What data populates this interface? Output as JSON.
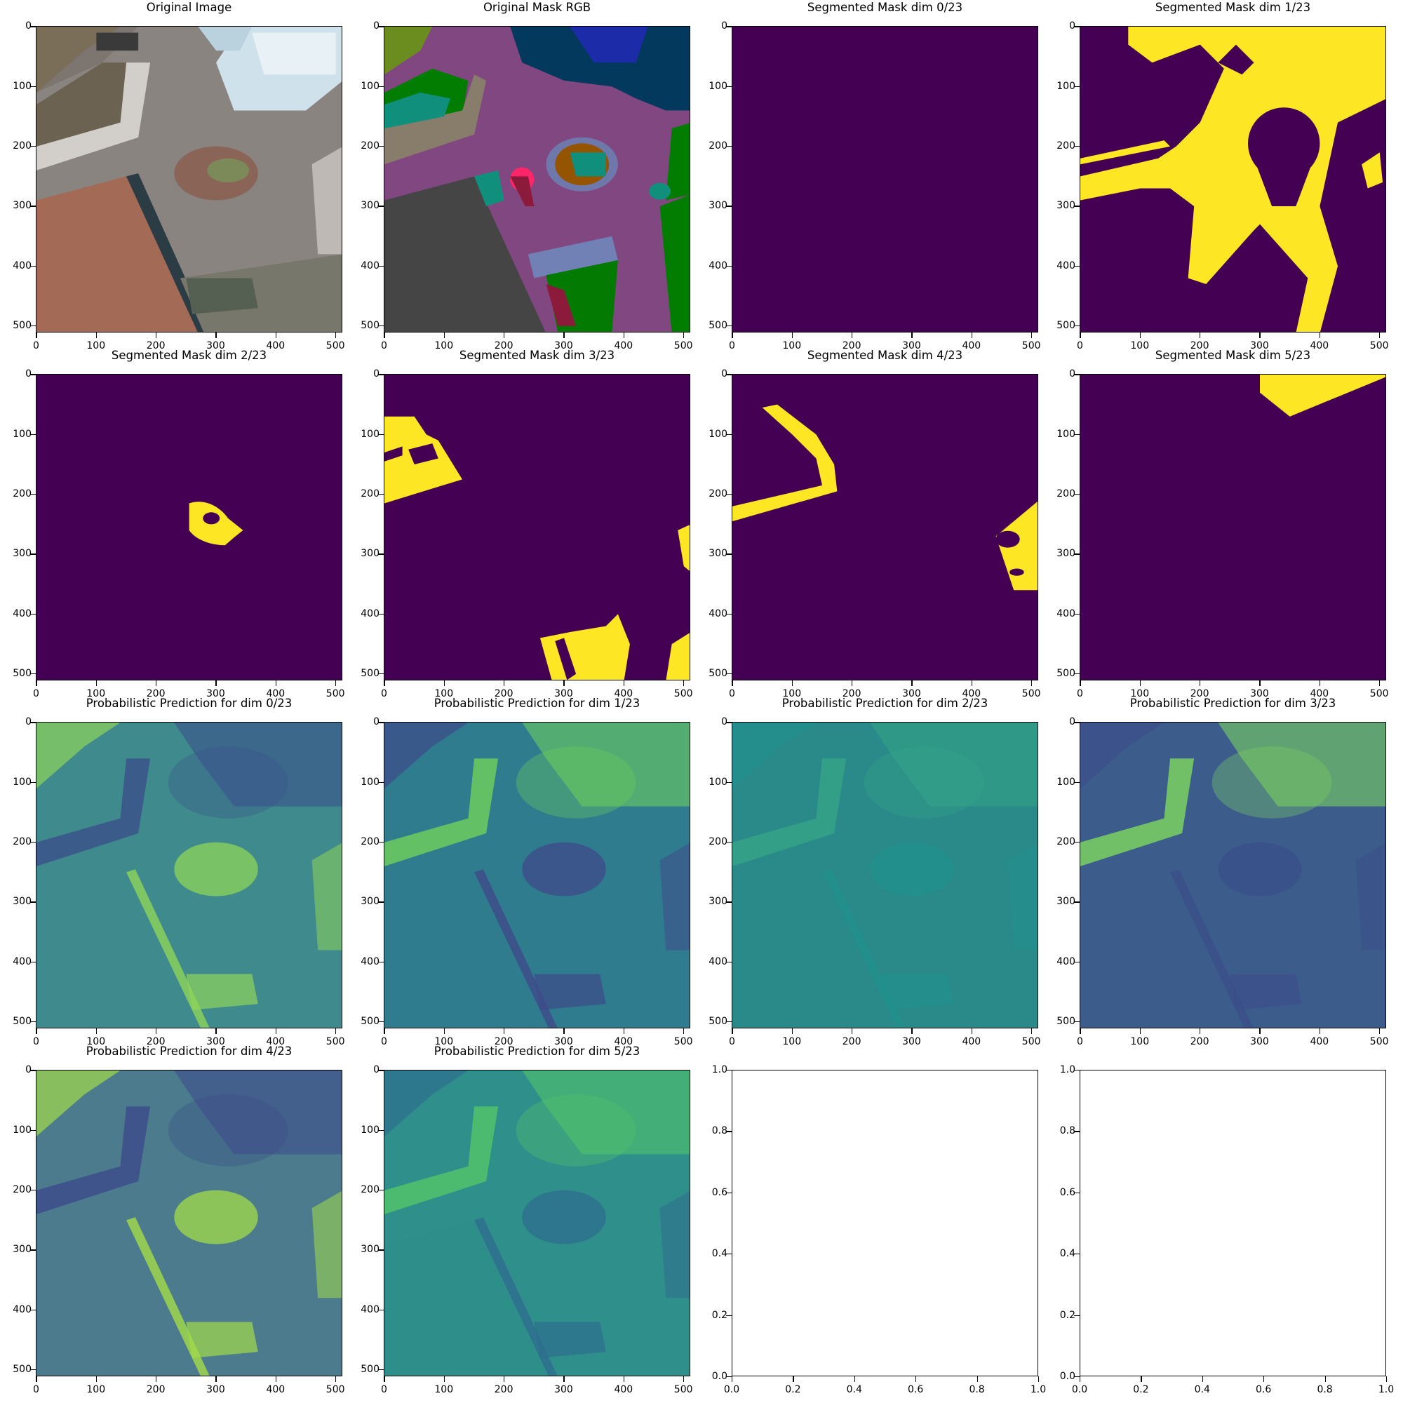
{
  "figure": {
    "panels": [
      {
        "title": "Original Image",
        "kind": "photo"
      },
      {
        "title": "Original Mask RGB",
        "kind": "rgbmask"
      },
      {
        "title": "Segmented Mask dim 0/23",
        "kind": "mask0"
      },
      {
        "title": "Segmented Mask dim 1/23",
        "kind": "mask1"
      },
      {
        "title": "Segmented Mask dim 2/23",
        "kind": "mask2"
      },
      {
        "title": "Segmented Mask dim 3/23",
        "kind": "mask3"
      },
      {
        "title": "Segmented Mask dim 4/23",
        "kind": "mask4"
      },
      {
        "title": "Segmented Mask dim 5/23",
        "kind": "mask5"
      },
      {
        "title": "Probabilistic Prediction for dim 0/23",
        "kind": "prob0"
      },
      {
        "title": "Probabilistic Prediction for dim 1/23",
        "kind": "prob1"
      },
      {
        "title": "Probabilistic Prediction for dim 2/23",
        "kind": "prob2"
      },
      {
        "title": "Probabilistic Prediction for dim 3/23",
        "kind": "prob3"
      },
      {
        "title": "Probabilistic Prediction for dim 4/23",
        "kind": "prob4"
      },
      {
        "title": "Probabilistic Prediction for dim 5/23",
        "kind": "prob5"
      },
      {
        "title": "",
        "kind": "empty"
      },
      {
        "title": "",
        "kind": "empty"
      }
    ],
    "image_ticks": [
      "0",
      "100",
      "200",
      "300",
      "400",
      "500"
    ],
    "empty_x_ticks": [
      "0.0",
      "0.2",
      "0.4",
      "0.6",
      "0.8",
      "1.0"
    ],
    "empty_y_ticks": [
      "1.0",
      "0.8",
      "0.6",
      "0.4",
      "0.2",
      "0.0"
    ],
    "colors": {
      "mask_background": "#440154",
      "mask_foreground": "#fde725"
    }
  }
}
